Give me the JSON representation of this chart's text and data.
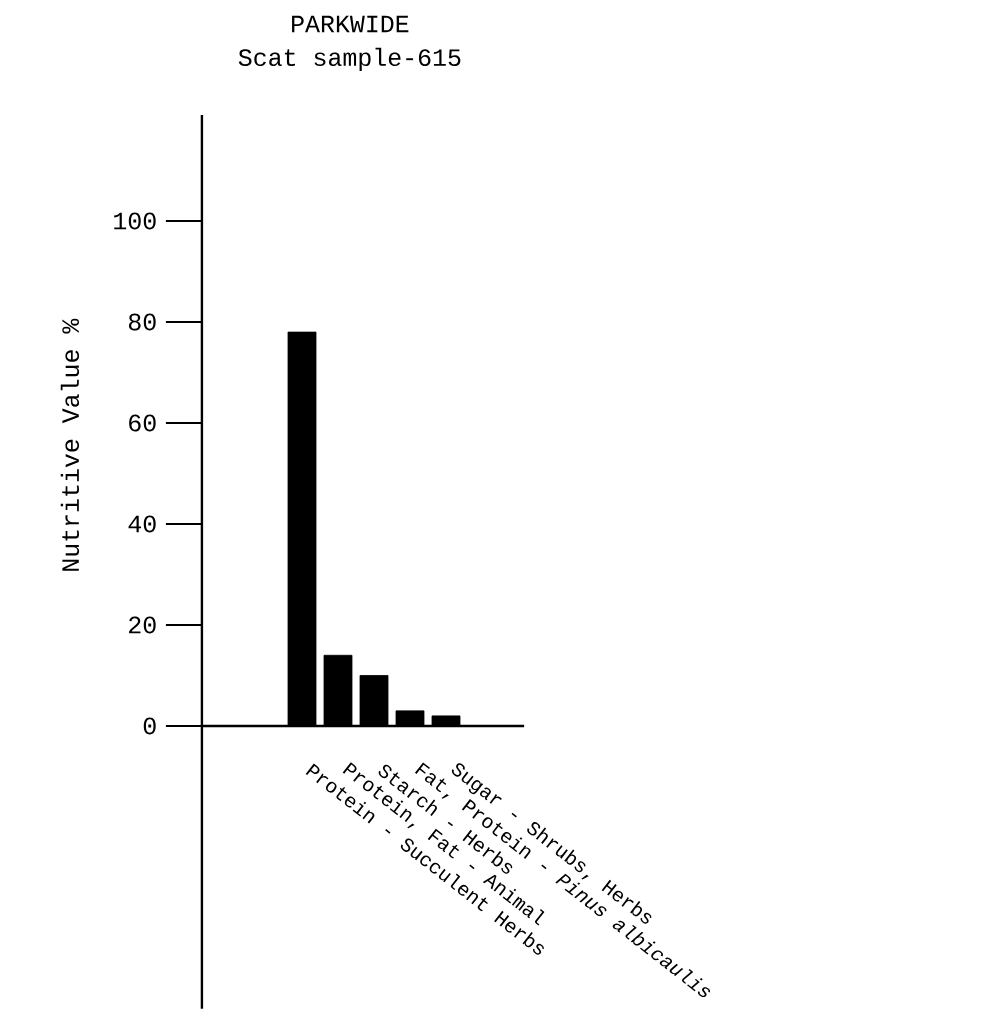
{
  "chart_data": {
    "type": "bar",
    "title": "PARKWIDE",
    "subtitle": "Scat sample-615",
    "ylabel": "Nutritive Value %",
    "categories": [
      "Protein - Succulent Herbs",
      "Protein, Fat - Animal",
      "Starch - Herbs",
      "Fat, Protein - *Pinus albicaulis*",
      "Sugar - Shrubs, Herbs"
    ],
    "values": [
      78,
      14,
      10,
      3,
      2
    ],
    "color": "#000000",
    "ylim": [
      -56,
      121
    ],
    "yticks": [
      0,
      20,
      40,
      60,
      80,
      100
    ]
  }
}
